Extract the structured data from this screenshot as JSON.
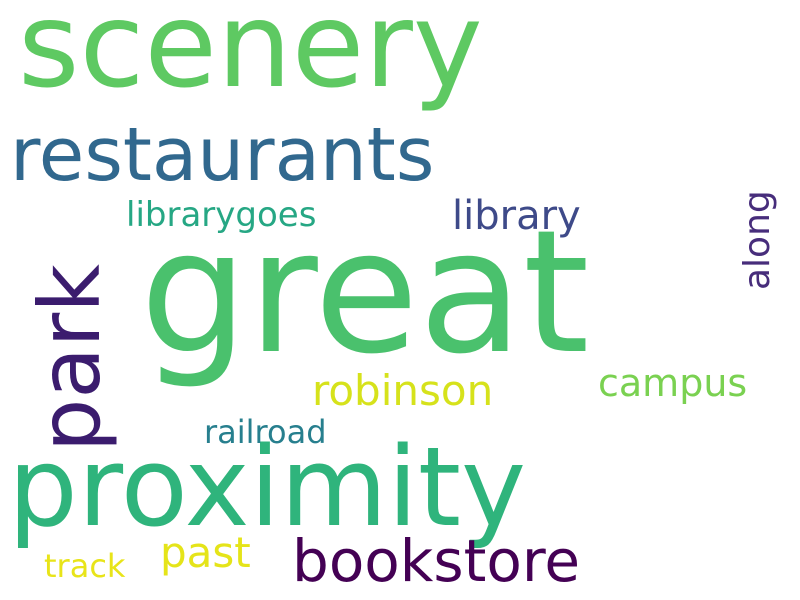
{
  "words": [
    {
      "text": "scenery",
      "color": "#5ec962"
    },
    {
      "text": "restaurants",
      "color": "#31688e"
    },
    {
      "text": "great",
      "color": "#4ac16d"
    },
    {
      "text": "park",
      "color": "#3b1c6e"
    },
    {
      "text": "proximity",
      "color": "#2fb47c"
    },
    {
      "text": "librarygoes",
      "color": "#26a784"
    },
    {
      "text": "library",
      "color": "#3e4a89"
    },
    {
      "text": "along",
      "color": "#472d7b"
    },
    {
      "text": "robinson",
      "color": "#d6e21b"
    },
    {
      "text": "campus",
      "color": "#7ad151"
    },
    {
      "text": "railroad",
      "color": "#277f8e"
    },
    {
      "text": "bookstore",
      "color": "#440154"
    },
    {
      "text": "past",
      "color": "#e5e419"
    },
    {
      "text": "track",
      "color": "#e8e419"
    }
  ]
}
